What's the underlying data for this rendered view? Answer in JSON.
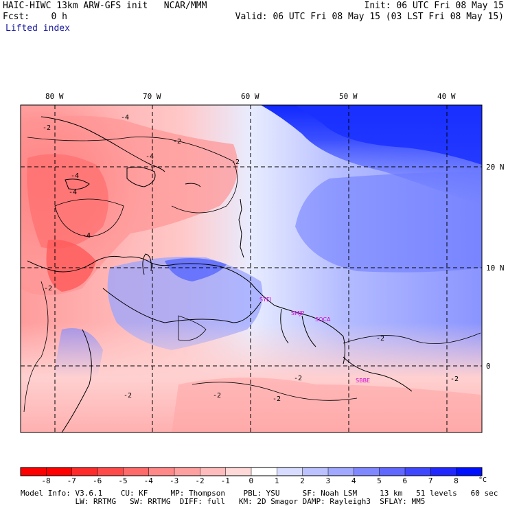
{
  "header": {
    "title": "HAIC-HIWC 13km ARW-GFS init   NCAR/MMM",
    "forecast": "Fcst:    0 h",
    "field": "Lifted index",
    "init": "Init: 06 UTC Fri 08 May 15",
    "valid": "Valid: 06 UTC Fri 08 May 15 (03 LST Fri 08 May 15)"
  },
  "map": {
    "longitude_labels": [
      "80 W",
      "70 W",
      "60 W",
      "50 W",
      "40 W"
    ],
    "latitude_labels": [
      "20 N",
      "10 N",
      "0"
    ],
    "contour_labels": [
      "-2",
      "-4",
      "-2",
      "-4",
      "-4",
      "-2",
      "-4",
      "-4",
      "-2",
      "-2",
      "-2",
      "-2",
      "-2",
      "-2",
      "-2"
    ],
    "stations": [
      "SYEI",
      "SMJP",
      "SOCA",
      "SBBE"
    ],
    "colors": {
      "land_outline": "#000000",
      "grid": "#000000"
    }
  },
  "colorbar": {
    "labels": [
      "-8",
      "-7",
      "-6",
      "-5",
      "-4",
      "-3",
      "-2",
      "-1",
      "0",
      "1",
      "2",
      "3",
      "4",
      "5",
      "6",
      "7",
      "8"
    ],
    "unit": "°C",
    "colors": [
      "#ff0000",
      "#ff2a2a",
      "#ff4a4a",
      "#ff6a6a",
      "#ff8888",
      "#ffa0a0",
      "#ffbcbc",
      "#ffd8d8",
      "#ffffff",
      "#d8dcff",
      "#bcc2ff",
      "#a0a8ff",
      "#8088ff",
      "#6068ff",
      "#4048ff",
      "#2028ff",
      "#0010ff"
    ]
  },
  "model_info": {
    "line1": "Model Info: V3.6.1    CU: KF     MP: Thompson    PBL: YSU     SF: Noah LSM     13 km   51 levels   60 sec",
    "line2": "            LW: RRTMG   SW: RRTMG  DIFF: full   KM: 2D Smagor DAMP: Rayleigh3  SFLAY: MM5"
  }
}
